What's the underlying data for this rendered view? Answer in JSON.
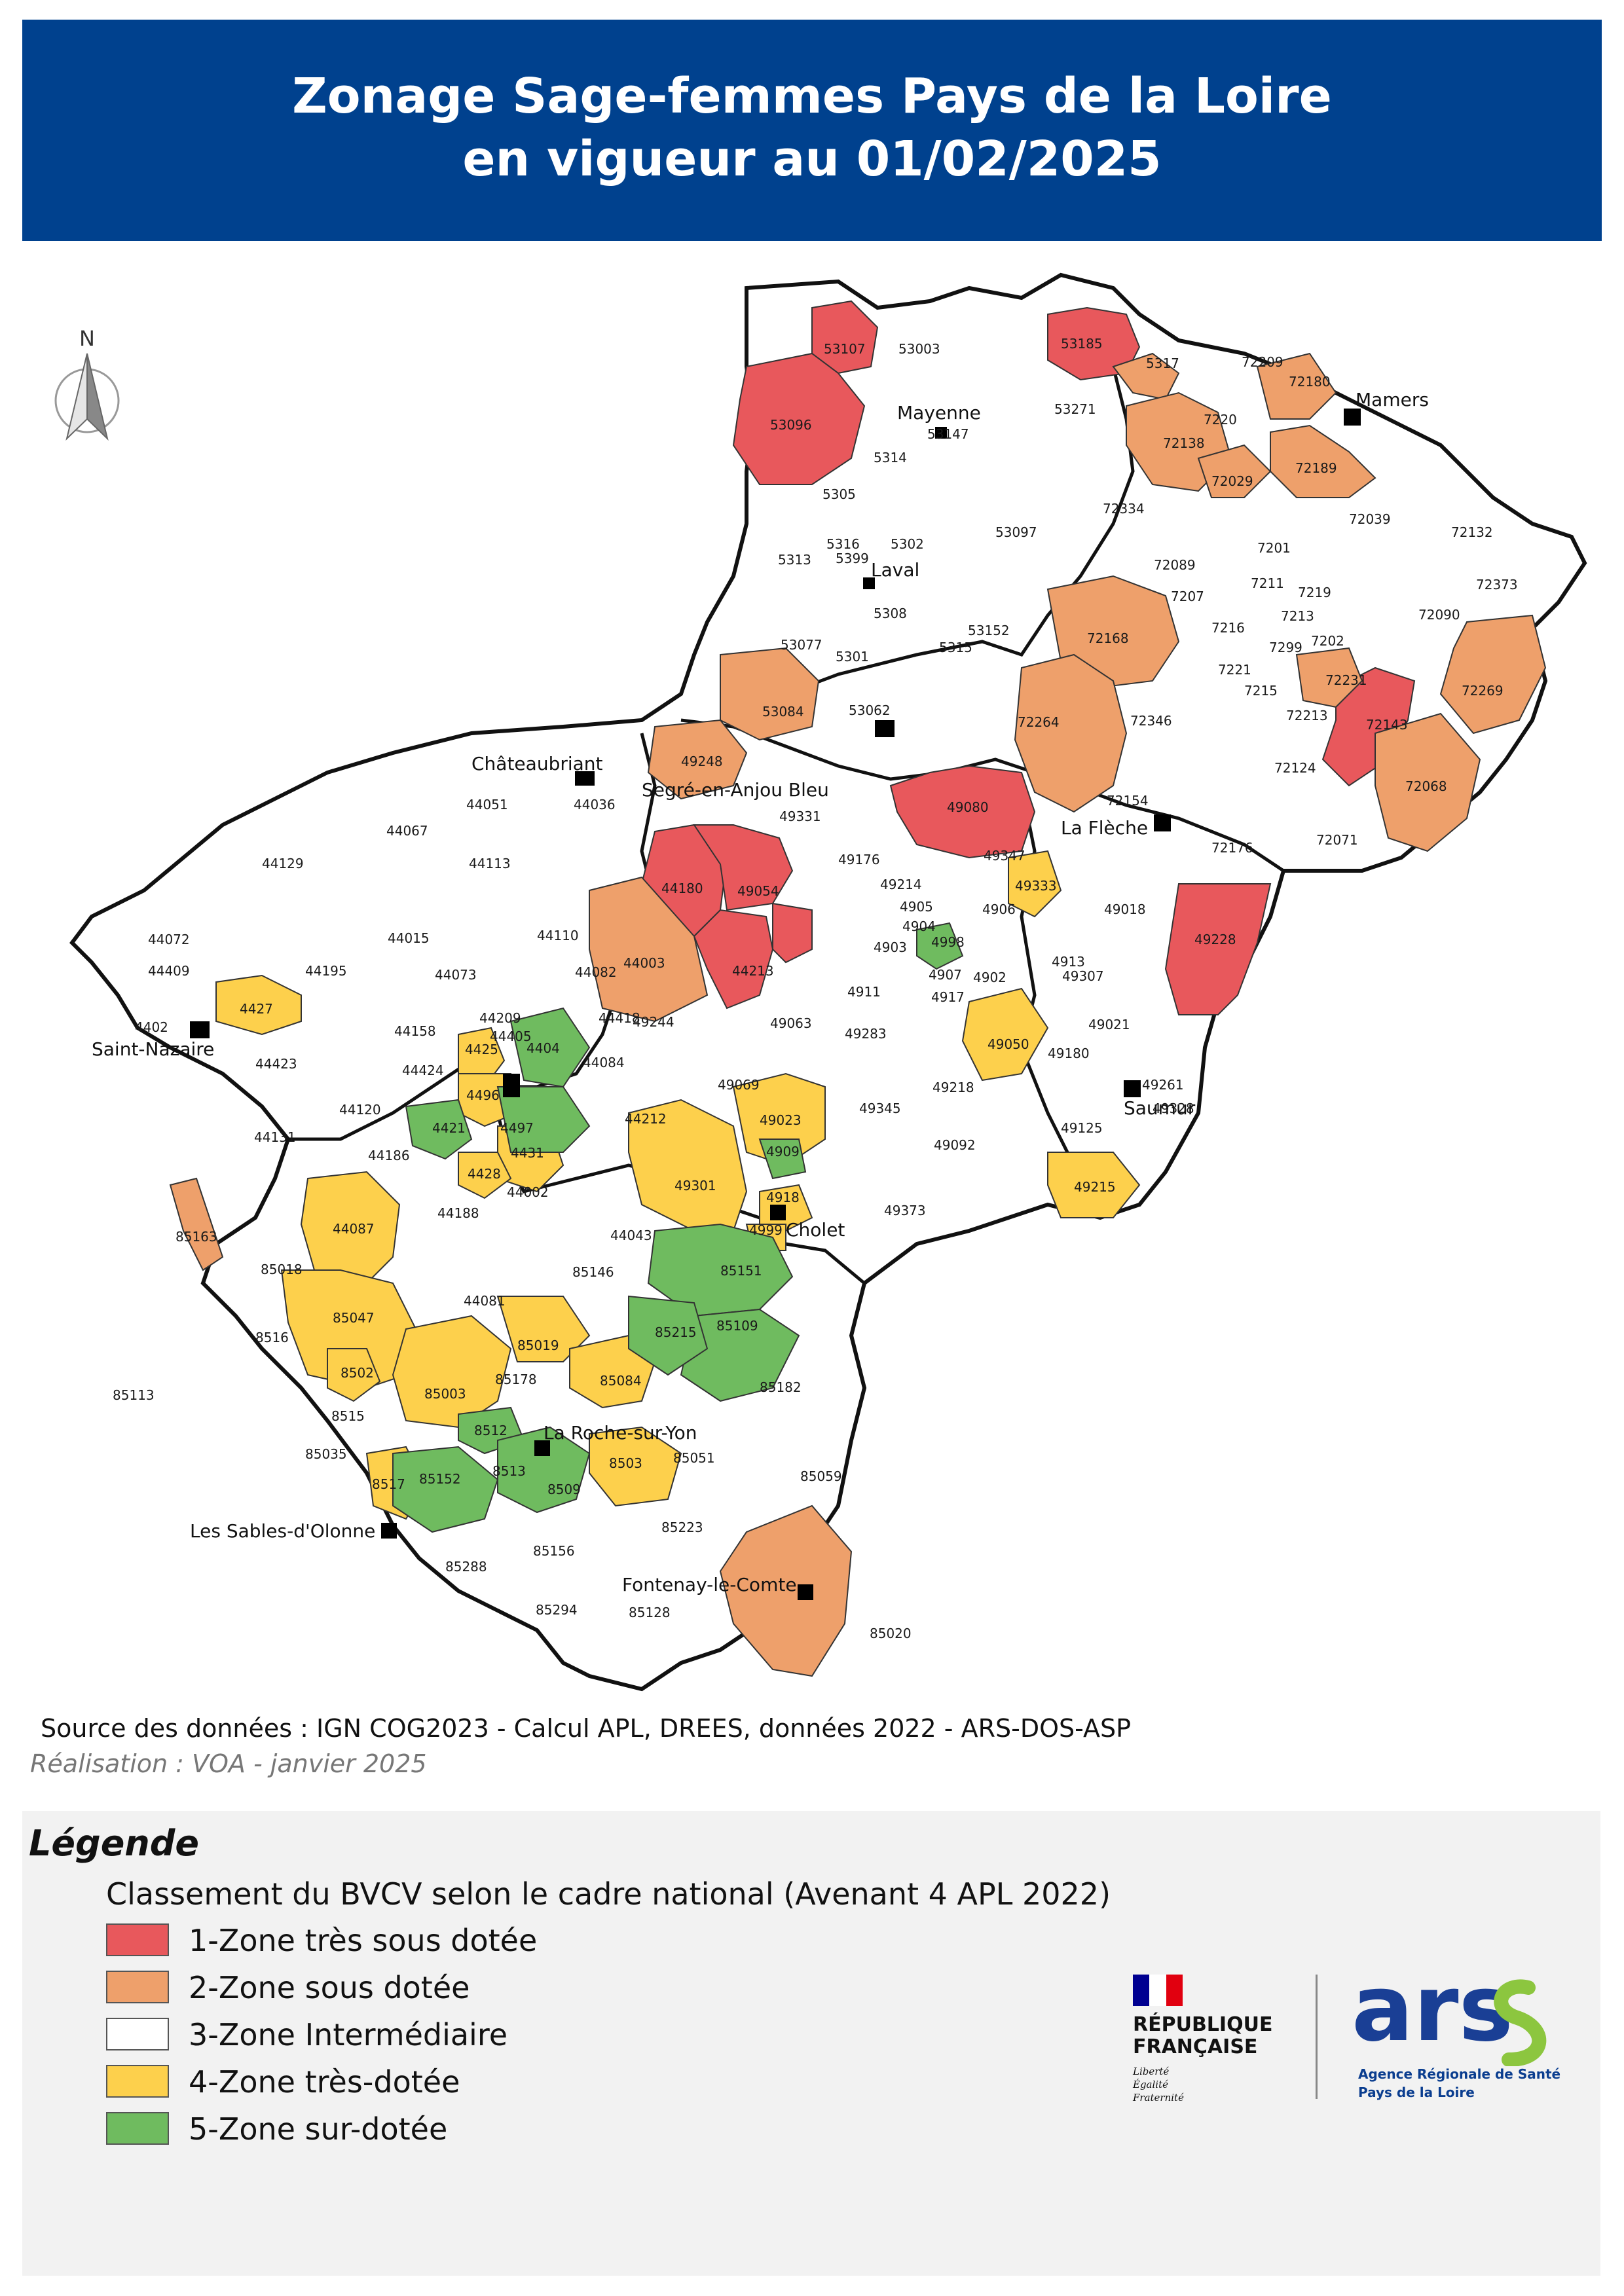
{
  "header": {
    "title_line1": "Zonage Sage-femmes Pays de la Loire",
    "title_line2": "en vigueur au 01/02/2025"
  },
  "map": {
    "north_label": "N",
    "cities": [
      "Mayenne",
      "Laval",
      "Mamers",
      "Châteaubriant",
      "Segré-en-Anjou Bleu",
      "La Flèche",
      "Saint-Nazaire",
      "Saumur",
      "Cholet",
      "La Roche-sur-Yon",
      "Les Sables-d'Olonne",
      "Fontenay-le-Comte"
    ],
    "zones": {
      "very_under_served": [
        "53107",
        "53185",
        "53096",
        "72143",
        "49080",
        "44180",
        "49054",
        "44213",
        "49228"
      ],
      "under_served": [
        "5317",
        "72180",
        "72138",
        "72189",
        "72168",
        "72231",
        "72269",
        "72264",
        "72068",
        "53084",
        "49248",
        "44003",
        "85020"
      ],
      "intermediate": [
        "53003",
        "53147",
        "5314",
        "5305",
        "53271",
        "53097",
        "5302",
        "5316",
        "5399",
        "5313",
        "5308",
        "5315",
        "53152",
        "53077",
        "5301",
        "53062",
        "72334",
        "72209",
        "7220",
        "72029",
        "72039",
        "72132",
        "72089",
        "7201",
        "7211",
        "72373",
        "7207",
        "7219",
        "7213",
        "72090",
        "7216",
        "7202",
        "7299",
        "7221",
        "7215",
        "72346",
        "72213",
        "72124",
        "72154",
        "72176",
        "72071",
        "49331",
        "49176",
        "49214",
        "4905",
        "4904",
        "4903",
        "4902",
        "4907",
        "4917",
        "4911",
        "49283",
        "49063",
        "49244",
        "49069",
        "49218",
        "49345",
        "49092",
        "49373",
        "4913",
        "49307",
        "49021",
        "49180",
        "49261",
        "49125",
        "49328",
        "49018",
        "49347",
        "44051",
        "44036",
        "44067",
        "44113",
        "44129",
        "44015",
        "44110",
        "44072",
        "44409",
        "44195",
        "44073",
        "44209",
        "44405",
        "44158",
        "44424",
        "44423",
        "44084",
        "44120",
        "44131",
        "44186",
        "44188",
        "44002",
        "44043",
        "44212",
        "44418",
        "44082",
        "4402",
        "85163",
        "85018",
        "85146",
        "44081",
        "8516",
        "85113",
        "8515",
        "85035",
        "85178",
        "85182",
        "85051",
        "85059",
        "85223",
        "85156",
        "8509",
        "85288",
        "85294",
        "85128"
      ],
      "very_well_served": [
        "49333",
        "4906",
        "4427",
        "4425",
        "4496",
        "4431",
        "4428",
        "49050",
        "49023",
        "49301",
        "4918",
        "4999",
        "49215",
        "44087",
        "85047",
        "8502",
        "85003",
        "85019",
        "85084",
        "8517",
        "8503"
      ],
      "over_served": [
        "4998",
        "4404",
        "4421",
        "4497",
        "4909",
        "85151",
        "85109",
        "85215",
        "8512",
        "8513",
        "85152"
      ]
    }
  },
  "footer": {
    "source": "Source des données : IGN COG2023 - Calcul APL, DREES, données 2022 - ARS-DOS-ASP",
    "credit": "Réalisation : VOA - janvier 2025"
  },
  "legend": {
    "title": "Légende",
    "subtitle": "Classement du BVCV selon le cadre national (Avenant 4 APL 2022)",
    "items": [
      {
        "label": "1-Zone très sous dotée",
        "color": "#e8585c"
      },
      {
        "label": "2-Zone sous dotée",
        "color": "#eea06b"
      },
      {
        "label": "3-Zone Intermédiaire",
        "color": "#ffffff"
      },
      {
        "label": "4-Zone très-dotée",
        "color": "#fdd04c"
      },
      {
        "label": "5-Zone sur-dotée",
        "color": "#6fbb5f"
      }
    ]
  },
  "logos": {
    "rf_line1": "RÉPUBLIQUE",
    "rf_line2": "FRANÇAISE",
    "rf_motto1": "Liberté",
    "rf_motto2": "Égalité",
    "rf_motto3": "Fraternité",
    "ars_text": "ars",
    "ars_agency": "Agence Régionale de Santé",
    "ars_region": "Pays de la Loire"
  },
  "colors": {
    "header_bg": "#00418e",
    "very_under": "#e8585c",
    "under": "#eea06b",
    "intermediate": "#ffffff",
    "very_well": "#fdd04c",
    "over": "#6fbb5f"
  }
}
